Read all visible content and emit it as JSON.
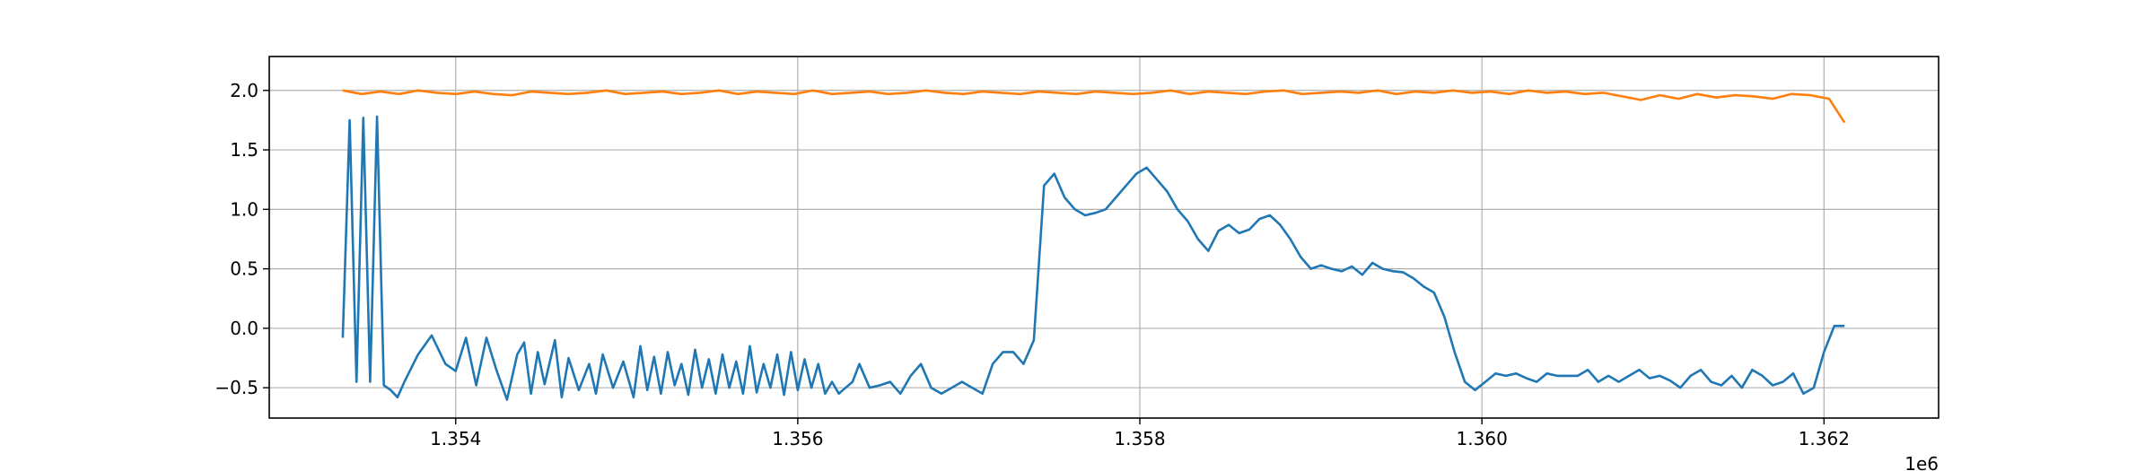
{
  "chart_data": {
    "type": "line",
    "title": "",
    "xlabel": "",
    "ylabel": "",
    "x_offset_label": "1e6",
    "xlim": [
      1.35291,
      1.36267
    ],
    "ylim": [
      -0.755,
      2.285
    ],
    "grid": true,
    "x_ticks": [
      1.354,
      1.356,
      1.358,
      1.36,
      1.362
    ],
    "x_tick_labels": [
      "1.354",
      "1.356",
      "1.358",
      "1.360",
      "1.362"
    ],
    "y_ticks": [
      -0.5,
      0.0,
      0.5,
      1.0,
      1.5,
      2.0
    ],
    "y_tick_labels": [
      "−0.5",
      "0.0",
      "0.5",
      "1.0",
      "1.5",
      "2.0"
    ],
    "colors": {
      "series_1": "#1f77b4",
      "series_2": "#ff7f0e"
    },
    "series": [
      {
        "color": "#1f77b4",
        "x": [
          1.35334,
          1.35338,
          1.35342,
          1.35346,
          1.3535,
          1.35354,
          1.35358,
          1.35362,
          1.35366,
          1.3537,
          1.35378,
          1.35386,
          1.35394,
          1.354,
          1.35406,
          1.35412,
          1.35418,
          1.35424,
          1.3543,
          1.35436,
          1.3544,
          1.35444,
          1.35448,
          1.35452,
          1.35458,
          1.35462,
          1.35466,
          1.35472,
          1.35478,
          1.35482,
          1.35486,
          1.35492,
          1.35498,
          1.35504,
          1.35508,
          1.35512,
          1.35516,
          1.3552,
          1.35524,
          1.35528,
          1.35532,
          1.35536,
          1.3554,
          1.35544,
          1.35548,
          1.35552,
          1.35556,
          1.3556,
          1.35564,
          1.35568,
          1.35572,
          1.35576,
          1.3558,
          1.35584,
          1.35588,
          1.35592,
          1.35596,
          1.356,
          1.35604,
          1.35608,
          1.35612,
          1.35616,
          1.3562,
          1.35624,
          1.35628,
          1.35632,
          1.35636,
          1.35642,
          1.35648,
          1.35654,
          1.3566,
          1.35666,
          1.35672,
          1.35678,
          1.35684,
          1.3569,
          1.35696,
          1.35702,
          1.35708,
          1.35714,
          1.3572,
          1.35726,
          1.35732,
          1.35738,
          1.35744,
          1.3575,
          1.35756,
          1.35762,
          1.35768,
          1.35774,
          1.3578,
          1.35786,
          1.35792,
          1.35798,
          1.35804,
          1.3581,
          1.35816,
          1.35822,
          1.35828,
          1.35834,
          1.3584,
          1.35846,
          1.35852,
          1.35858,
          1.35864,
          1.3587,
          1.35876,
          1.35882,
          1.35888,
          1.35894,
          1.359,
          1.35906,
          1.35912,
          1.35918,
          1.35924,
          1.3593,
          1.35936,
          1.35942,
          1.35948,
          1.35954,
          1.3596,
          1.35966,
          1.35972,
          1.35978,
          1.35984,
          1.3599,
          1.35996,
          1.36002,
          1.36008,
          1.36014,
          1.3602,
          1.36026,
          1.36032,
          1.36038,
          1.36044,
          1.3605,
          1.36056,
          1.36062,
          1.36068,
          1.36074,
          1.3608,
          1.36086,
          1.36092,
          1.36098,
          1.36104,
          1.3611,
          1.36116,
          1.36122,
          1.36128,
          1.36134,
          1.3614,
          1.36146,
          1.36152,
          1.36158,
          1.36164,
          1.3617,
          1.36176,
          1.36182,
          1.36188,
          1.36194,
          1.362,
          1.36206,
          1.36212
        ],
        "y": [
          -0.08,
          1.75,
          -0.45,
          1.77,
          -0.45,
          1.78,
          -0.48,
          -0.52,
          -0.58,
          -0.45,
          -0.22,
          -0.06,
          -0.3,
          -0.36,
          -0.08,
          -0.48,
          -0.08,
          -0.36,
          -0.6,
          -0.22,
          -0.12,
          -0.55,
          -0.2,
          -0.47,
          -0.1,
          -0.58,
          -0.25,
          -0.52,
          -0.3,
          -0.55,
          -0.22,
          -0.5,
          -0.28,
          -0.58,
          -0.15,
          -0.52,
          -0.24,
          -0.55,
          -0.2,
          -0.48,
          -0.3,
          -0.56,
          -0.18,
          -0.5,
          -0.26,
          -0.55,
          -0.22,
          -0.5,
          -0.28,
          -0.55,
          -0.15,
          -0.54,
          -0.3,
          -0.5,
          -0.22,
          -0.56,
          -0.2,
          -0.52,
          -0.26,
          -0.5,
          -0.3,
          -0.55,
          -0.45,
          -0.55,
          -0.5,
          -0.45,
          -0.3,
          -0.5,
          -0.48,
          -0.45,
          -0.55,
          -0.4,
          -0.3,
          -0.5,
          -0.55,
          -0.5,
          -0.45,
          -0.5,
          -0.55,
          -0.3,
          -0.2,
          -0.2,
          -0.3,
          -0.1,
          1.2,
          1.3,
          1.1,
          1.0,
          0.95,
          0.97,
          1.0,
          1.1,
          1.2,
          1.3,
          1.35,
          1.25,
          1.15,
          1.0,
          0.9,
          0.75,
          0.65,
          0.82,
          0.87,
          0.8,
          0.83,
          0.92,
          0.95,
          0.87,
          0.75,
          0.6,
          0.5,
          0.53,
          0.5,
          0.48,
          0.52,
          0.45,
          0.55,
          0.5,
          0.48,
          0.47,
          0.42,
          0.35,
          0.3,
          0.1,
          -0.2,
          -0.45,
          -0.52,
          -0.45,
          -0.38,
          -0.4,
          -0.38,
          -0.42,
          -0.45,
          -0.38,
          -0.4,
          -0.4,
          -0.4,
          -0.35,
          -0.45,
          -0.4,
          -0.45,
          -0.4,
          -0.35,
          -0.42,
          -0.4,
          -0.44,
          -0.5,
          -0.4,
          -0.35,
          -0.45,
          -0.48,
          -0.4,
          -0.5,
          -0.35,
          -0.4,
          -0.48,
          -0.45,
          -0.38,
          -0.55,
          -0.5,
          -0.2,
          0.02,
          0.02
        ],
        "y_note": ""
      },
      {
        "color": "#ff7f0e",
        "x": [
          1.35334,
          1.35345,
          1.35356,
          1.35367,
          1.35378,
          1.35389,
          1.354,
          1.35411,
          1.35422,
          1.35433,
          1.35444,
          1.35455,
          1.35466,
          1.35477,
          1.35488,
          1.35499,
          1.3551,
          1.35521,
          1.35532,
          1.35543,
          1.35554,
          1.35565,
          1.35576,
          1.35587,
          1.35598,
          1.35609,
          1.3562,
          1.35631,
          1.35642,
          1.35653,
          1.35664,
          1.35675,
          1.35686,
          1.35697,
          1.35708,
          1.35719,
          1.3573,
          1.35741,
          1.35752,
          1.35763,
          1.35774,
          1.35785,
          1.35796,
          1.35807,
          1.35818,
          1.35829,
          1.3584,
          1.35851,
          1.35862,
          1.35873,
          1.35884,
          1.35895,
          1.35906,
          1.35917,
          1.35928,
          1.35939,
          1.3595,
          1.35961,
          1.35972,
          1.35983,
          1.35994,
          1.36005,
          1.36016,
          1.36027,
          1.36038,
          1.36049,
          1.3606,
          1.36071,
          1.36082,
          1.36093,
          1.36104,
          1.36115,
          1.36126,
          1.36137,
          1.36148,
          1.36159,
          1.3617,
          1.36181,
          1.36192,
          1.36203,
          1.36212
        ],
        "y": [
          2.0,
          1.97,
          1.99,
          1.97,
          2.0,
          1.98,
          1.97,
          1.99,
          1.97,
          1.96,
          1.99,
          1.98,
          1.97,
          1.98,
          2.0,
          1.97,
          1.98,
          1.99,
          1.97,
          1.98,
          2.0,
          1.97,
          1.99,
          1.98,
          1.97,
          2.0,
          1.97,
          1.98,
          1.99,
          1.97,
          1.98,
          2.0,
          1.98,
          1.97,
          1.99,
          1.98,
          1.97,
          1.99,
          1.98,
          1.97,
          1.99,
          1.98,
          1.97,
          1.98,
          2.0,
          1.97,
          1.99,
          1.98,
          1.97,
          1.99,
          2.0,
          1.97,
          1.98,
          1.99,
          1.98,
          2.0,
          1.97,
          1.99,
          1.98,
          2.0,
          1.98,
          1.99,
          1.97,
          2.0,
          1.98,
          1.99,
          1.97,
          1.98,
          1.95,
          1.92,
          1.96,
          1.93,
          1.97,
          1.94,
          1.96,
          1.95,
          1.93,
          1.97,
          1.96,
          1.93,
          1.73
        ]
      }
    ]
  }
}
